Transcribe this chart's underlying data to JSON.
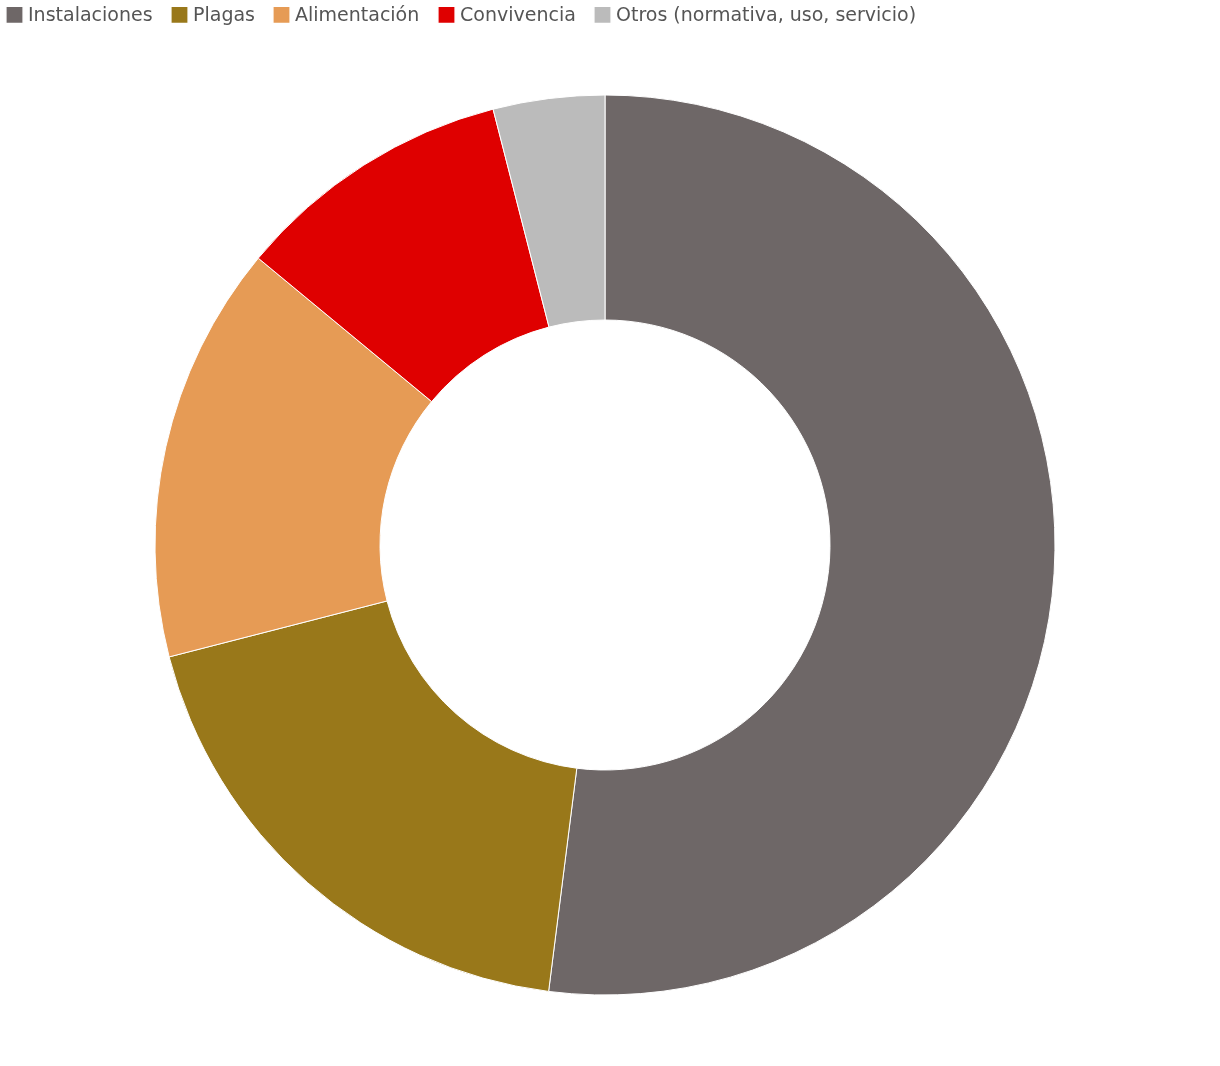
{
  "chart_data": {
    "type": "donut",
    "categories": [
      "Instalaciones",
      "Plagas",
      "Alimentación",
      "Convivencia",
      "Otros (normativa, uso, servicio)"
    ],
    "values": [
      52,
      19,
      15,
      10,
      4
    ],
    "colors": [
      "#6e6767",
      "#99781a",
      "#e69b55",
      "#df0000",
      "#bbbbbb"
    ],
    "legend": "top left"
  }
}
